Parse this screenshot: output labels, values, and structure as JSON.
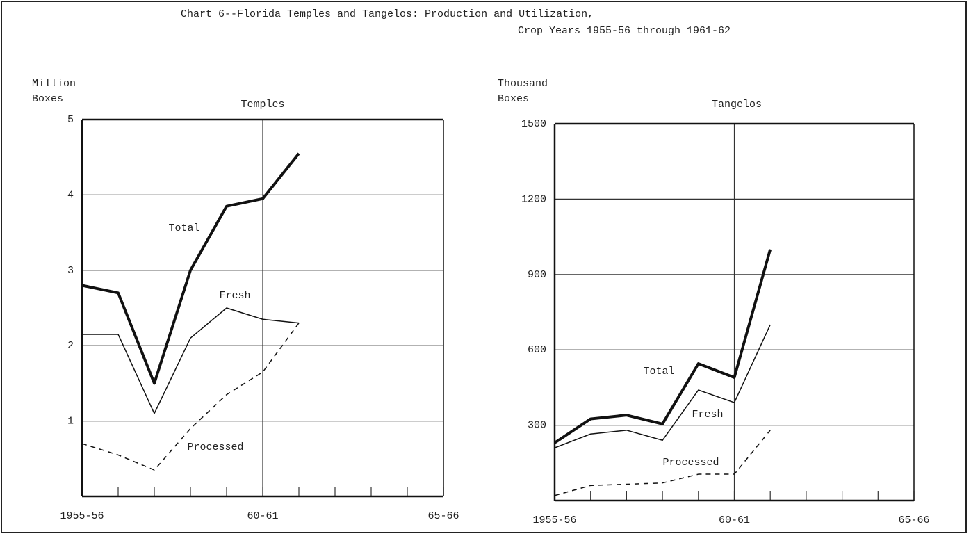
{
  "title": [
    "Chart 6--Florida Temples and Tangelos:  Production and Utilization,",
    "Crop Years 1955-56 through 1961-62"
  ],
  "chart_data": [
    {
      "type": "line",
      "title": "Temples",
      "y_label": [
        "Million",
        "Boxes"
      ],
      "categories": [
        "1955-56",
        null,
        null,
        null,
        null,
        "60-61",
        null,
        null,
        null,
        null,
        "65-66"
      ],
      "ylim": [
        0,
        5
      ],
      "yticks": [
        1,
        2,
        3,
        4,
        5
      ],
      "grid": true,
      "series": [
        {
          "name": "Total",
          "color": "#111111",
          "values": [
            2.8,
            2.7,
            1.5,
            3.0,
            3.85,
            3.95,
            4.55,
            null,
            null,
            null,
            null
          ]
        },
        {
          "name": "Fresh",
          "color": "#111111",
          "values": [
            2.15,
            2.15,
            1.1,
            2.1,
            2.5,
            2.35,
            2.3,
            null,
            null,
            null,
            null
          ]
        },
        {
          "name": "Processed",
          "color": "#111111",
          "values": [
            0.7,
            0.55,
            0.35,
            0.9,
            1.35,
            1.65,
            2.3,
            null,
            null,
            null,
            null
          ]
        }
      ]
    },
    {
      "type": "line",
      "title": "Tangelos",
      "y_label": [
        "Thousand",
        "Boxes"
      ],
      "categories": [
        "1955-56",
        null,
        null,
        null,
        null,
        "60-61",
        null,
        null,
        null,
        null,
        "65-66"
      ],
      "ylim": [
        0,
        1500
      ],
      "yticks": [
        300,
        600,
        900,
        1200,
        1500
      ],
      "grid": true,
      "series": [
        {
          "name": "Total",
          "color": "#111111",
          "values": [
            230,
            325,
            340,
            305,
            545,
            490,
            1000,
            null,
            null,
            null,
            null
          ]
        },
        {
          "name": "Fresh",
          "color": "#111111",
          "values": [
            210,
            265,
            280,
            240,
            440,
            390,
            700,
            null,
            null,
            null,
            null
          ]
        },
        {
          "name": "Processed",
          "color": "#111111",
          "values": [
            20,
            60,
            65,
            70,
            105,
            105,
            280,
            null,
            null,
            null,
            null
          ]
        }
      ]
    }
  ]
}
